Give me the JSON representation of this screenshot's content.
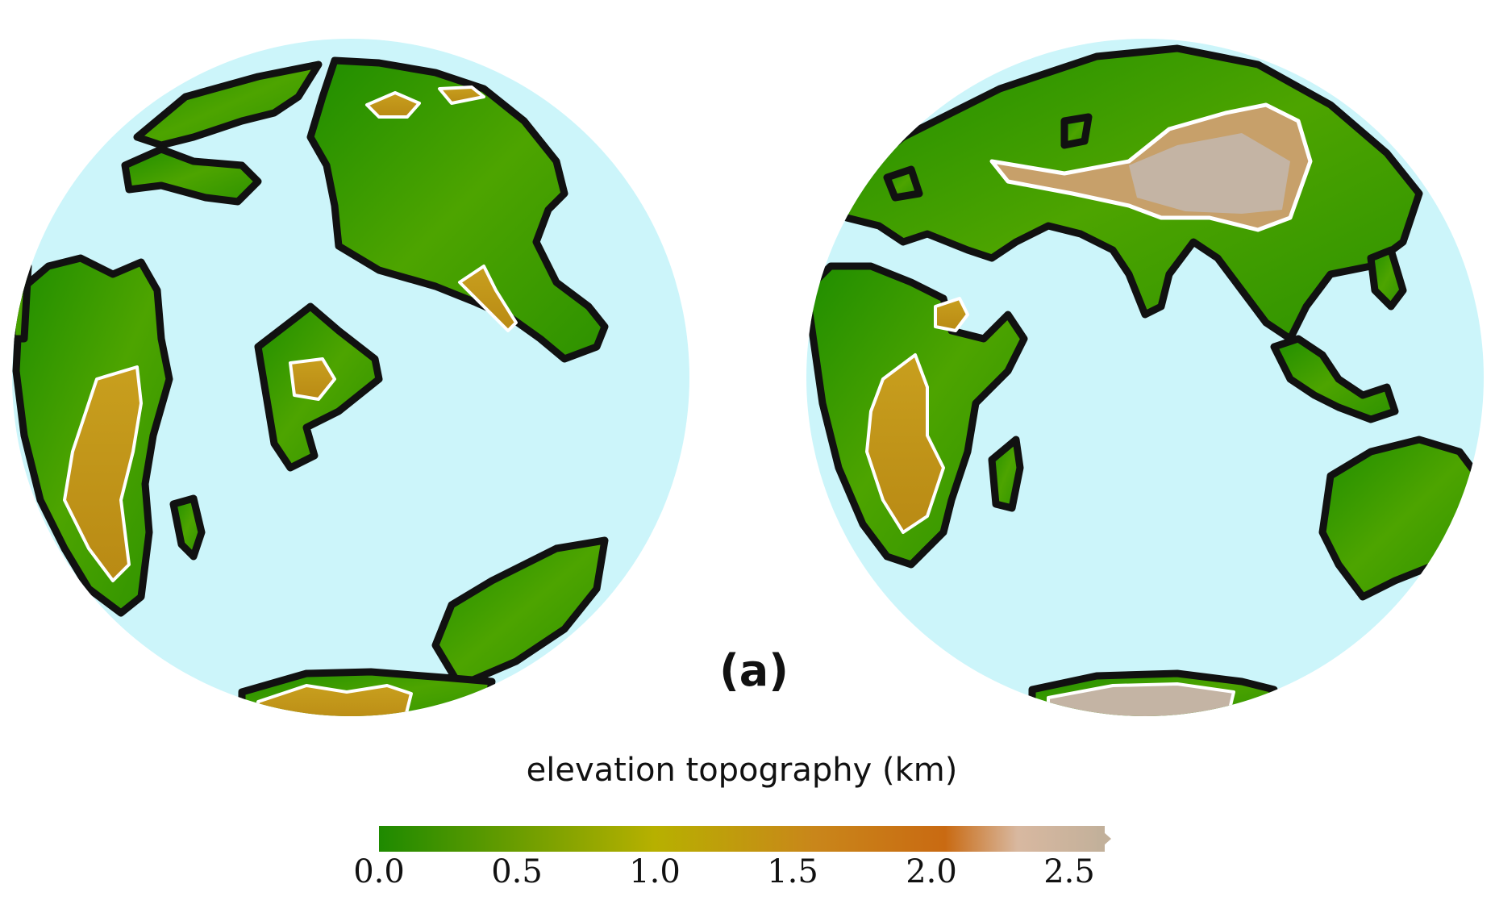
{
  "figure": {
    "panel_label": "(a)",
    "colorbar": {
      "title": "elevation topography (km)",
      "ticks": [
        "0.0",
        "0.5",
        "1.0",
        "1.5",
        "2.0",
        "2.5"
      ],
      "range": [
        0.0,
        2.5
      ],
      "extend": "max",
      "colors": [
        "#1e8a00",
        "#b7b000",
        "#c9861a",
        "#c96a12",
        "#c2b09a"
      ]
    },
    "contour_levels_km": [
      0.0,
      1.0
    ],
    "contour_colors": {
      "coastline": "#111111",
      "one_km": "#ffffff"
    },
    "ocean_color": "#ccf5fa",
    "globes": [
      "western-hemisphere",
      "eastern-hemisphere"
    ]
  }
}
